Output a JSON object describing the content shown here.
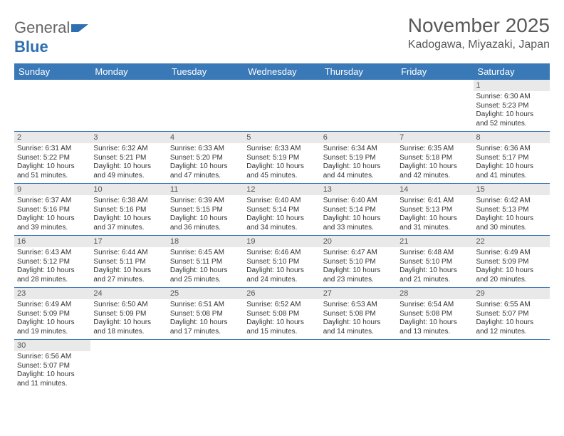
{
  "brand": {
    "part1": "General",
    "part2": "Blue"
  },
  "header": {
    "month_title": "November 2025",
    "location": "Kadogawa, Miyazaki, Japan"
  },
  "dayNames": [
    "Sunday",
    "Monday",
    "Tuesday",
    "Wednesday",
    "Thursday",
    "Friday",
    "Saturday"
  ],
  "colors": {
    "header_bg": "#3a79b7",
    "header_text": "#ffffff",
    "daynum_bg": "#e9e9e9",
    "border": "#3a79b7"
  },
  "weeks": [
    [
      null,
      null,
      null,
      null,
      null,
      null,
      {
        "n": "1",
        "sunrise": "Sunrise: 6:30 AM",
        "sunset": "Sunset: 5:23 PM",
        "daylight": "Daylight: 10 hours and 52 minutes."
      }
    ],
    [
      {
        "n": "2",
        "sunrise": "Sunrise: 6:31 AM",
        "sunset": "Sunset: 5:22 PM",
        "daylight": "Daylight: 10 hours and 51 minutes."
      },
      {
        "n": "3",
        "sunrise": "Sunrise: 6:32 AM",
        "sunset": "Sunset: 5:21 PM",
        "daylight": "Daylight: 10 hours and 49 minutes."
      },
      {
        "n": "4",
        "sunrise": "Sunrise: 6:33 AM",
        "sunset": "Sunset: 5:20 PM",
        "daylight": "Daylight: 10 hours and 47 minutes."
      },
      {
        "n": "5",
        "sunrise": "Sunrise: 6:33 AM",
        "sunset": "Sunset: 5:19 PM",
        "daylight": "Daylight: 10 hours and 45 minutes."
      },
      {
        "n": "6",
        "sunrise": "Sunrise: 6:34 AM",
        "sunset": "Sunset: 5:19 PM",
        "daylight": "Daylight: 10 hours and 44 minutes."
      },
      {
        "n": "7",
        "sunrise": "Sunrise: 6:35 AM",
        "sunset": "Sunset: 5:18 PM",
        "daylight": "Daylight: 10 hours and 42 minutes."
      },
      {
        "n": "8",
        "sunrise": "Sunrise: 6:36 AM",
        "sunset": "Sunset: 5:17 PM",
        "daylight": "Daylight: 10 hours and 41 minutes."
      }
    ],
    [
      {
        "n": "9",
        "sunrise": "Sunrise: 6:37 AM",
        "sunset": "Sunset: 5:16 PM",
        "daylight": "Daylight: 10 hours and 39 minutes."
      },
      {
        "n": "10",
        "sunrise": "Sunrise: 6:38 AM",
        "sunset": "Sunset: 5:16 PM",
        "daylight": "Daylight: 10 hours and 37 minutes."
      },
      {
        "n": "11",
        "sunrise": "Sunrise: 6:39 AM",
        "sunset": "Sunset: 5:15 PM",
        "daylight": "Daylight: 10 hours and 36 minutes."
      },
      {
        "n": "12",
        "sunrise": "Sunrise: 6:40 AM",
        "sunset": "Sunset: 5:14 PM",
        "daylight": "Daylight: 10 hours and 34 minutes."
      },
      {
        "n": "13",
        "sunrise": "Sunrise: 6:40 AM",
        "sunset": "Sunset: 5:14 PM",
        "daylight": "Daylight: 10 hours and 33 minutes."
      },
      {
        "n": "14",
        "sunrise": "Sunrise: 6:41 AM",
        "sunset": "Sunset: 5:13 PM",
        "daylight": "Daylight: 10 hours and 31 minutes."
      },
      {
        "n": "15",
        "sunrise": "Sunrise: 6:42 AM",
        "sunset": "Sunset: 5:13 PM",
        "daylight": "Daylight: 10 hours and 30 minutes."
      }
    ],
    [
      {
        "n": "16",
        "sunrise": "Sunrise: 6:43 AM",
        "sunset": "Sunset: 5:12 PM",
        "daylight": "Daylight: 10 hours and 28 minutes."
      },
      {
        "n": "17",
        "sunrise": "Sunrise: 6:44 AM",
        "sunset": "Sunset: 5:11 PM",
        "daylight": "Daylight: 10 hours and 27 minutes."
      },
      {
        "n": "18",
        "sunrise": "Sunrise: 6:45 AM",
        "sunset": "Sunset: 5:11 PM",
        "daylight": "Daylight: 10 hours and 25 minutes."
      },
      {
        "n": "19",
        "sunrise": "Sunrise: 6:46 AM",
        "sunset": "Sunset: 5:10 PM",
        "daylight": "Daylight: 10 hours and 24 minutes."
      },
      {
        "n": "20",
        "sunrise": "Sunrise: 6:47 AM",
        "sunset": "Sunset: 5:10 PM",
        "daylight": "Daylight: 10 hours and 23 minutes."
      },
      {
        "n": "21",
        "sunrise": "Sunrise: 6:48 AM",
        "sunset": "Sunset: 5:10 PM",
        "daylight": "Daylight: 10 hours and 21 minutes."
      },
      {
        "n": "22",
        "sunrise": "Sunrise: 6:49 AM",
        "sunset": "Sunset: 5:09 PM",
        "daylight": "Daylight: 10 hours and 20 minutes."
      }
    ],
    [
      {
        "n": "23",
        "sunrise": "Sunrise: 6:49 AM",
        "sunset": "Sunset: 5:09 PM",
        "daylight": "Daylight: 10 hours and 19 minutes."
      },
      {
        "n": "24",
        "sunrise": "Sunrise: 6:50 AM",
        "sunset": "Sunset: 5:09 PM",
        "daylight": "Daylight: 10 hours and 18 minutes."
      },
      {
        "n": "25",
        "sunrise": "Sunrise: 6:51 AM",
        "sunset": "Sunset: 5:08 PM",
        "daylight": "Daylight: 10 hours and 17 minutes."
      },
      {
        "n": "26",
        "sunrise": "Sunrise: 6:52 AM",
        "sunset": "Sunset: 5:08 PM",
        "daylight": "Daylight: 10 hours and 15 minutes."
      },
      {
        "n": "27",
        "sunrise": "Sunrise: 6:53 AM",
        "sunset": "Sunset: 5:08 PM",
        "daylight": "Daylight: 10 hours and 14 minutes."
      },
      {
        "n": "28",
        "sunrise": "Sunrise: 6:54 AM",
        "sunset": "Sunset: 5:08 PM",
        "daylight": "Daylight: 10 hours and 13 minutes."
      },
      {
        "n": "29",
        "sunrise": "Sunrise: 6:55 AM",
        "sunset": "Sunset: 5:07 PM",
        "daylight": "Daylight: 10 hours and 12 minutes."
      }
    ],
    [
      {
        "n": "30",
        "sunrise": "Sunrise: 6:56 AM",
        "sunset": "Sunset: 5:07 PM",
        "daylight": "Daylight: 10 hours and 11 minutes."
      },
      null,
      null,
      null,
      null,
      null,
      null
    ]
  ]
}
